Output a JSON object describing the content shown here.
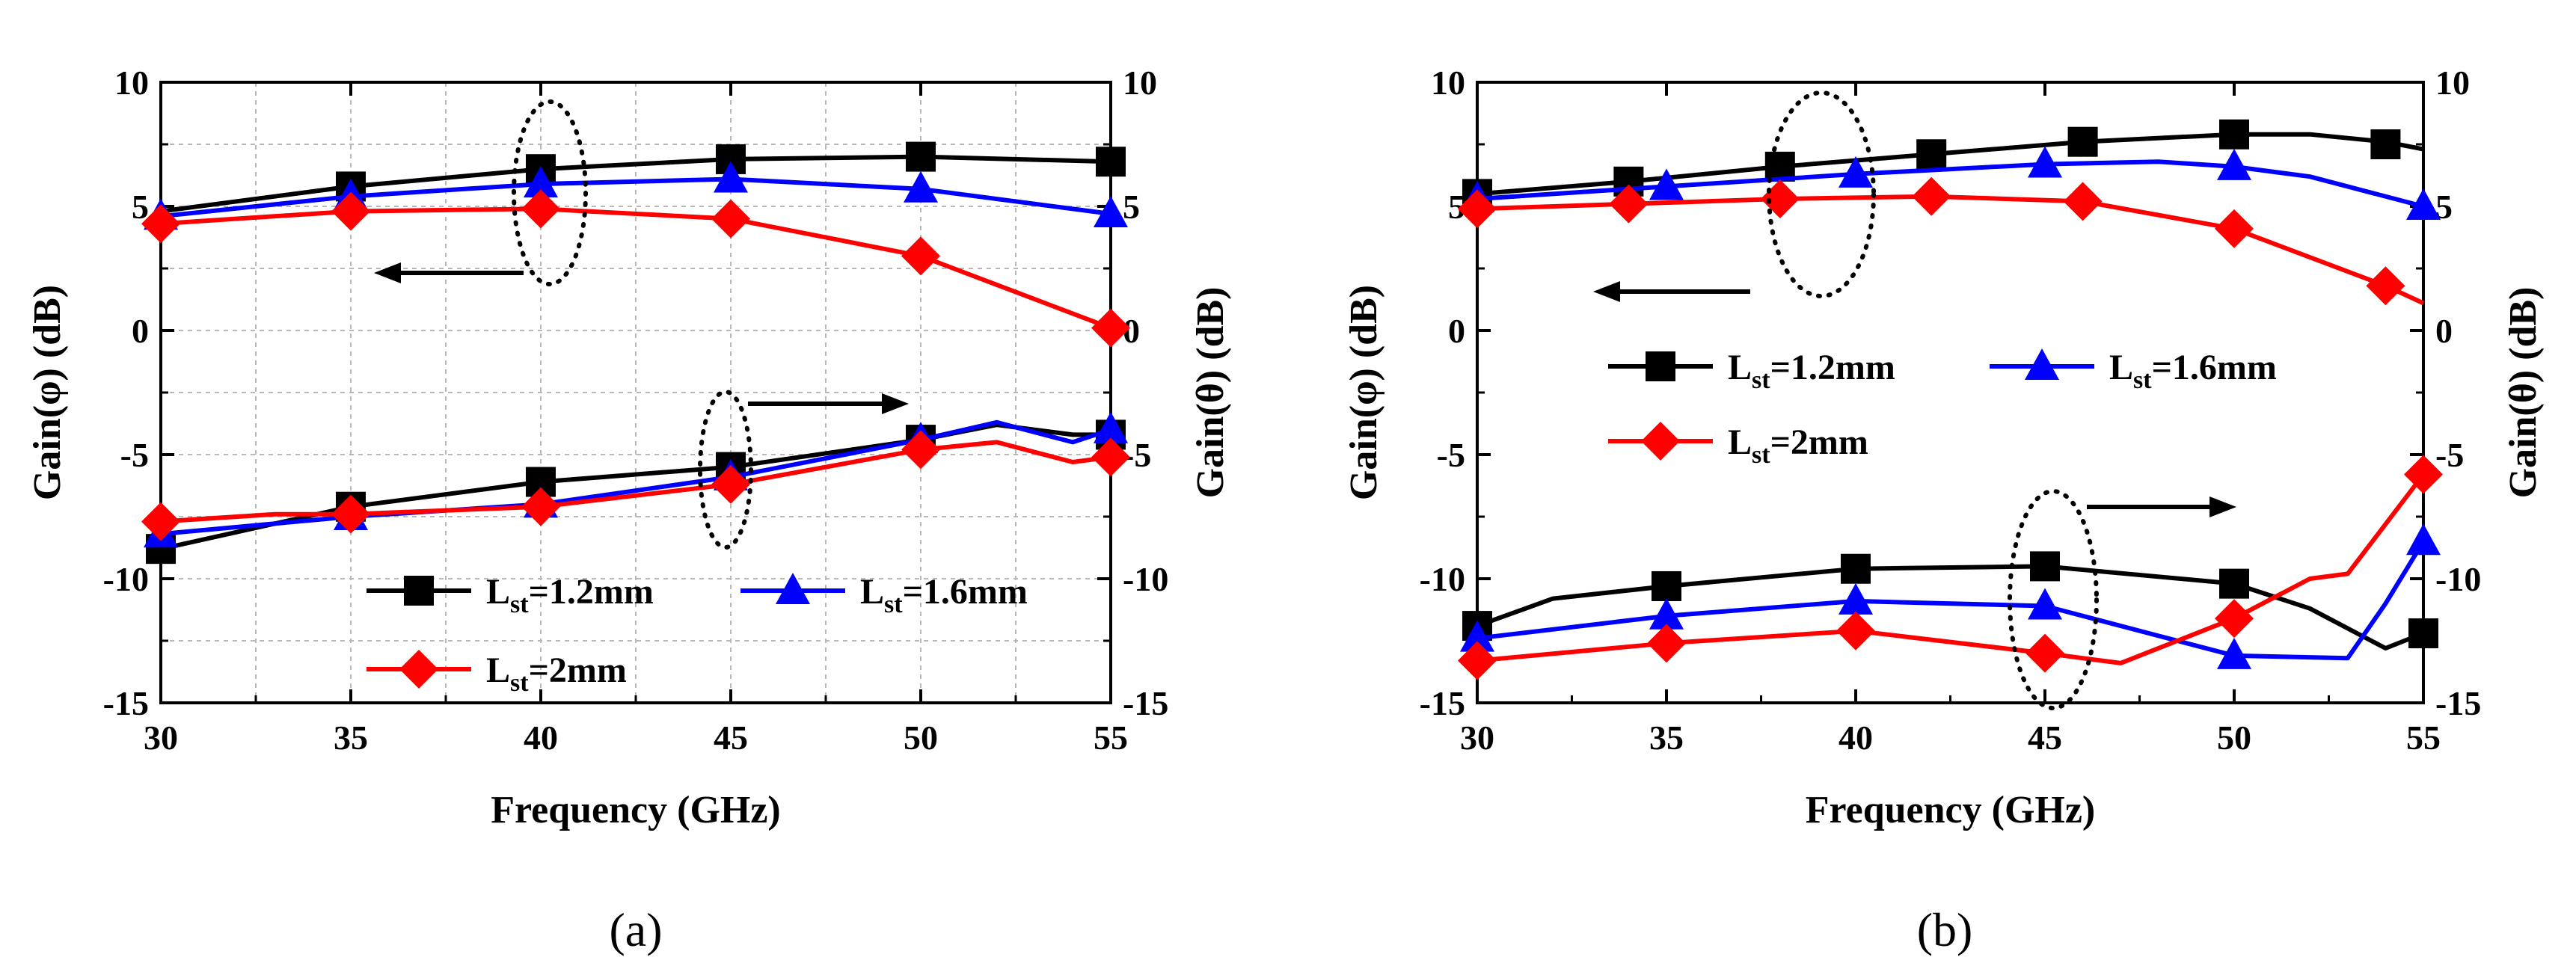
{
  "chart_data": [
    {
      "type": "line",
      "panel_label": "(a)",
      "xlabel": "Frequency (GHz)",
      "ylabel_left": "Gain(φ) (dB)",
      "ylabel_right": "Gain(θ) (dB)",
      "xlim": [
        30,
        55
      ],
      "ylim": [
        -15,
        10
      ],
      "x_ticks": [
        "30",
        "35",
        "40",
        "45",
        "50",
        "55"
      ],
      "y_ticks": [
        "-15",
        "-10",
        "-5",
        "0",
        "5",
        "10"
      ],
      "grid": true,
      "legend": [
        {
          "key": "L",
          "sub": "st",
          "rest": "=1.2mm",
          "color": "#000000",
          "marker": "square"
        },
        {
          "key": "L",
          "sub": "st",
          "rest": "=1.6mm",
          "color": "#0000ff",
          "marker": "triangle"
        },
        {
          "key": "L",
          "sub": "st",
          "rest": "=2mm",
          "color": "#ff0000",
          "marker": "diamond"
        }
      ],
      "series": [
        {
          "name": "Lst=1.2mm φ",
          "axis": "left",
          "color": "#000000",
          "marker": "square",
          "line": [
            [
              30,
              4.8
            ],
            [
              35,
              5.8
            ],
            [
              40,
              6.5
            ],
            [
              45,
              6.9
            ],
            [
              50,
              7.0
            ],
            [
              55,
              6.8
            ]
          ],
          "markers": [
            [
              35,
              5.8
            ],
            [
              40,
              6.5
            ],
            [
              45,
              6.9
            ],
            [
              50,
              7.0
            ],
            [
              55,
              6.8
            ]
          ]
        },
        {
          "name": "Lst=1.6mm φ",
          "axis": "left",
          "color": "#0000ff",
          "marker": "triangle",
          "line": [
            [
              30,
              4.6
            ],
            [
              35,
              5.4
            ],
            [
              40,
              5.9
            ],
            [
              45,
              6.1
            ],
            [
              50,
              5.7
            ],
            [
              55,
              4.7
            ]
          ],
          "markers": [
            [
              30,
              4.6
            ],
            [
              35,
              5.4
            ],
            [
              40,
              5.9
            ],
            [
              45,
              6.1
            ],
            [
              50,
              5.7
            ],
            [
              55,
              4.7
            ]
          ]
        },
        {
          "name": "Lst=2mm φ",
          "axis": "left",
          "color": "#ff0000",
          "marker": "diamond",
          "line": [
            [
              30,
              4.3
            ],
            [
              35,
              4.8
            ],
            [
              40,
              4.9
            ],
            [
              45,
              4.5
            ],
            [
              50,
              3.0
            ],
            [
              55,
              0.1
            ]
          ],
          "markers": [
            [
              30,
              4.3
            ],
            [
              35,
              4.8
            ],
            [
              40,
              4.9
            ],
            [
              45,
              4.5
            ],
            [
              50,
              3.0
            ],
            [
              55,
              0.1
            ]
          ]
        },
        {
          "name": "Lst=1.2mm θ",
          "axis": "right",
          "color": "#000000",
          "marker": "square",
          "line": [
            [
              30,
              -8.8
            ],
            [
              35,
              -7.1
            ],
            [
              40,
              -6.1
            ],
            [
              45,
              -5.5
            ],
            [
              50,
              -4.4
            ],
            [
              52,
              -3.8
            ],
            [
              54,
              -4.2
            ],
            [
              55,
              -4.2
            ]
          ],
          "markers": [
            [
              30,
              -8.8
            ],
            [
              35,
              -7.1
            ],
            [
              40,
              -6.1
            ],
            [
              45,
              -5.5
            ],
            [
              50,
              -4.4
            ],
            [
              55,
              -4.2
            ]
          ]
        },
        {
          "name": "Lst=1.6mm θ",
          "axis": "right",
          "color": "#0000ff",
          "marker": "triangle",
          "line": [
            [
              30,
              -8.2
            ],
            [
              35,
              -7.5
            ],
            [
              40,
              -7.0
            ],
            [
              45,
              -5.9
            ],
            [
              50,
              -4.4
            ],
            [
              52,
              -3.7
            ],
            [
              54,
              -4.5
            ],
            [
              55,
              -4.0
            ]
          ],
          "markers": [
            [
              30,
              -8.2
            ],
            [
              35,
              -7.5
            ],
            [
              40,
              -7.0
            ],
            [
              45,
              -5.9
            ],
            [
              50,
              -4.4
            ],
            [
              55,
              -4.0
            ]
          ]
        },
        {
          "name": "Lst=2mm θ",
          "axis": "right",
          "color": "#ff0000",
          "marker": "diamond",
          "line": [
            [
              30,
              -7.7
            ],
            [
              33,
              -7.4
            ],
            [
              35,
              -7.4
            ],
            [
              40,
              -7.1
            ],
            [
              45,
              -6.2
            ],
            [
              50,
              -4.8
            ],
            [
              52,
              -4.5
            ],
            [
              54,
              -5.3
            ],
            [
              55,
              -5.1
            ]
          ],
          "markers": [
            [
              30,
              -7.7
            ],
            [
              35,
              -7.4
            ],
            [
              40,
              -7.1
            ],
            [
              45,
              -6.2
            ],
            [
              50,
              -4.8
            ],
            [
              55,
              -5.1
            ]
          ]
        }
      ],
      "annotations": [
        "dotted ellipse + left arrow: upper curves read on left axis (Gain φ)",
        "dotted ellipse + right arrow: lower curves read on right axis (Gain θ)"
      ]
    },
    {
      "type": "line",
      "panel_label": "(b)",
      "xlabel": "Frequency (GHz)",
      "ylabel_left": "Gain(φ) (dB)",
      "ylabel_right": "Gain(θ) (dB)",
      "xlim": [
        30,
        55
      ],
      "ylim": [
        -15,
        10
      ],
      "x_ticks": [
        "30",
        "35",
        "40",
        "45",
        "50",
        "55"
      ],
      "y_ticks": [
        "-15",
        "-10",
        "-5",
        "0",
        "5",
        "10"
      ],
      "grid": false,
      "legend": [
        {
          "key": "L",
          "sub": "st",
          "rest": "=1.2mm",
          "color": "#000000",
          "marker": "square"
        },
        {
          "key": "L",
          "sub": "st",
          "rest": "=1.6mm",
          "color": "#0000ff",
          "marker": "triangle"
        },
        {
          "key": "L",
          "sub": "st",
          "rest": "=2mm",
          "color": "#ff0000",
          "marker": "diamond"
        }
      ],
      "series": [
        {
          "name": "Lst=1.2mm φ",
          "axis": "left",
          "color": "#000000",
          "marker": "square",
          "line": [
            [
              30,
              5.5
            ],
            [
              34,
              6.0
            ],
            [
              38,
              6.6
            ],
            [
              42,
              7.1
            ],
            [
              46,
              7.6
            ],
            [
              50,
              7.9
            ],
            [
              52,
              7.9
            ],
            [
              54,
              7.6
            ],
            [
              55,
              7.3
            ]
          ],
          "markers": [
            [
              30,
              5.5
            ],
            [
              34,
              6.0
            ],
            [
              38,
              6.6
            ],
            [
              42,
              7.1
            ],
            [
              46,
              7.6
            ],
            [
              50,
              7.9
            ],
            [
              54,
              7.5
            ]
          ]
        },
        {
          "name": "Lst=1.6mm φ",
          "axis": "left",
          "color": "#0000ff",
          "marker": "triangle",
          "line": [
            [
              30,
              5.3
            ],
            [
              35,
              5.8
            ],
            [
              40,
              6.3
            ],
            [
              45,
              6.7
            ],
            [
              48,
              6.8
            ],
            [
              50,
              6.6
            ],
            [
              52,
              6.2
            ],
            [
              55,
              5.0
            ]
          ],
          "markers": [
            [
              30,
              5.3
            ],
            [
              35,
              5.8
            ],
            [
              40,
              6.3
            ],
            [
              45,
              6.7
            ],
            [
              50,
              6.6
            ],
            [
              55,
              5.0
            ]
          ]
        },
        {
          "name": "Lst=2mm φ",
          "axis": "left",
          "color": "#ff0000",
          "marker": "diamond",
          "line": [
            [
              30,
              4.9
            ],
            [
              34,
              5.1
            ],
            [
              38,
              5.3
            ],
            [
              42,
              5.4
            ],
            [
              46,
              5.2
            ],
            [
              50,
              4.1
            ],
            [
              54,
              1.8
            ],
            [
              55,
              1.1
            ]
          ],
          "markers": [
            [
              30,
              4.9
            ],
            [
              34,
              5.1
            ],
            [
              38,
              5.3
            ],
            [
              42,
              5.4
            ],
            [
              46,
              5.2
            ],
            [
              50,
              4.1
            ],
            [
              54,
              1.8
            ]
          ]
        },
        {
          "name": "Lst=1.2mm θ",
          "axis": "right",
          "color": "#000000",
          "marker": "square",
          "line": [
            [
              30,
              -11.9
            ],
            [
              32,
              -10.8
            ],
            [
              35,
              -10.3
            ],
            [
              40,
              -9.6
            ],
            [
              45,
              -9.5
            ],
            [
              50,
              -10.2
            ],
            [
              52,
              -11.2
            ],
            [
              54,
              -12.8
            ],
            [
              55,
              -12.2
            ]
          ],
          "markers": [
            [
              30,
              -11.9
            ],
            [
              35,
              -10.3
            ],
            [
              40,
              -9.6
            ],
            [
              45,
              -9.5
            ],
            [
              50,
              -10.2
            ],
            [
              55,
              -12.2
            ]
          ]
        },
        {
          "name": "Lst=1.6mm θ",
          "axis": "right",
          "color": "#0000ff",
          "marker": "triangle",
          "line": [
            [
              30,
              -12.4
            ],
            [
              35,
              -11.5
            ],
            [
              40,
              -10.9
            ],
            [
              45,
              -11.1
            ],
            [
              48,
              -12.3
            ],
            [
              50,
              -13.1
            ],
            [
              53,
              -13.2
            ],
            [
              54,
              -11.0
            ],
            [
              55,
              -8.5
            ]
          ],
          "markers": [
            [
              30,
              -12.4
            ],
            [
              35,
              -11.5
            ],
            [
              40,
              -10.9
            ],
            [
              45,
              -11.1
            ],
            [
              50,
              -13.1
            ],
            [
              55,
              -8.5
            ]
          ]
        },
        {
          "name": "Lst=2mm θ",
          "axis": "right",
          "color": "#ff0000",
          "marker": "diamond",
          "line": [
            [
              30,
              -13.3
            ],
            [
              35,
              -12.6
            ],
            [
              40,
              -12.1
            ],
            [
              45,
              -13.0
            ],
            [
              47,
              -13.4
            ],
            [
              50,
              -11.6
            ],
            [
              52,
              -10.0
            ],
            [
              53,
              -9.8
            ],
            [
              55,
              -5.8
            ]
          ],
          "markers": [
            [
              30,
              -13.3
            ],
            [
              35,
              -12.6
            ],
            [
              40,
              -12.1
            ],
            [
              45,
              -13.0
            ],
            [
              50,
              -11.6
            ],
            [
              55,
              -5.8
            ]
          ]
        }
      ],
      "annotations": [
        "dotted ellipse + left arrow: upper curves read on left axis (Gain φ)",
        "dotted ellipse + right arrow: lower curves read on right axis (Gain θ)"
      ]
    }
  ]
}
